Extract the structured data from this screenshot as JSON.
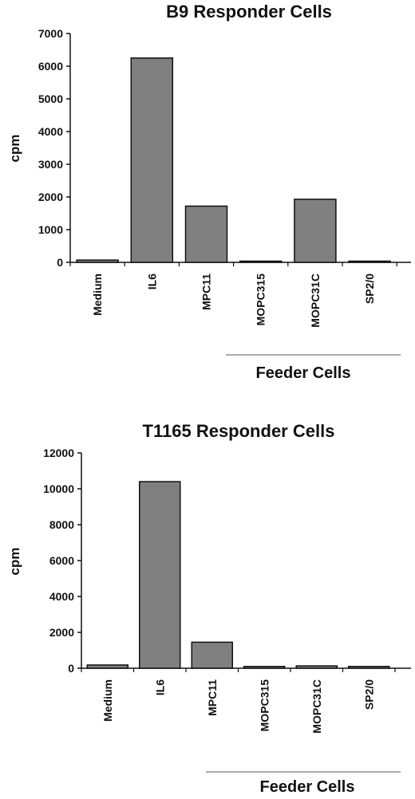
{
  "chart_data": [
    {
      "type": "bar",
      "title": "B9 Responder Cells",
      "ylabel": "cpm",
      "xlabel": "",
      "ylim": [
        0,
        7000
      ],
      "yticks": [
        0,
        1000,
        2000,
        3000,
        4000,
        5000,
        6000,
        7000
      ],
      "categories": [
        "Medium",
        "IL6",
        "MPC11",
        "MOPC315",
        "MOPC31C",
        "SP2/0"
      ],
      "values": [
        70,
        6250,
        1720,
        20,
        1930,
        20
      ],
      "bar_color": "#808080",
      "group_label": "Feeder Cells"
    },
    {
      "type": "bar",
      "title": "T1165 Responder Cells",
      "ylabel": "cpm",
      "xlabel": "",
      "ylim": [
        0,
        12000
      ],
      "yticks": [
        0,
        2000,
        4000,
        6000,
        8000,
        10000,
        12000
      ],
      "categories": [
        "Medium",
        "IL6",
        "MPC11",
        "MOPC315",
        "MOPC31C",
        "SP2/0"
      ],
      "values": [
        180,
        10400,
        1450,
        100,
        130,
        100
      ],
      "bar_color": "#808080",
      "group_label": "Feeder Cells"
    }
  ]
}
